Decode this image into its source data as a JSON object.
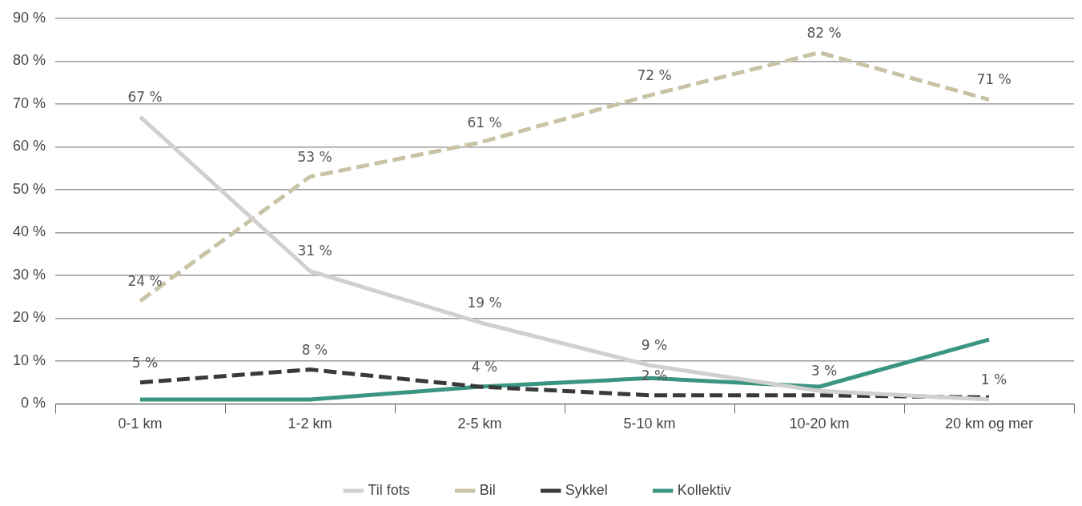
{
  "chart_data": {
    "type": "line",
    "categories": [
      "0-1 km",
      "1-2 km",
      "2-5 km",
      "5-10 km",
      "10-20 km",
      "20 km og mer"
    ],
    "ylim": [
      0,
      90
    ],
    "yticks": [
      {
        "value": 0,
        "label": "0 %"
      },
      {
        "value": 10,
        "label": "10 %"
      },
      {
        "value": 20,
        "label": "20 %"
      },
      {
        "value": 30,
        "label": "30 %"
      },
      {
        "value": 40,
        "label": "40 %"
      },
      {
        "value": 50,
        "label": "50 %"
      },
      {
        "value": 60,
        "label": "60 %"
      },
      {
        "value": 70,
        "label": "70 %"
      },
      {
        "value": 80,
        "label": "80 %"
      },
      {
        "value": 90,
        "label": "90 %"
      }
    ],
    "grid": "y",
    "legend": "bottom",
    "marker": "none",
    "series": [
      {
        "name": "Til fots",
        "color": "#d0d0d0",
        "line_style": "solid",
        "values": [
          67,
          31,
          19,
          9,
          3,
          1
        ],
        "value_labels": [
          "67 %",
          "31 %",
          "19 %",
          "9 %",
          "3 %",
          "1 %"
        ]
      },
      {
        "name": "Bil",
        "color": "#c9c3a6",
        "line_style": "dashed",
        "values": [
          24,
          53,
          61,
          72,
          82,
          71
        ],
        "value_labels": [
          "24 %",
          "53 %",
          "61 %",
          "72 %",
          "82 %",
          "71 %"
        ]
      },
      {
        "name": "Sykkel",
        "color": "#3a3a3a",
        "line_style": "dashed",
        "values": [
          5,
          8,
          4,
          2,
          2,
          1.5
        ],
        "value_labels": [
          "5 %",
          "8 %",
          "4 %",
          "2 %",
          null,
          null
        ]
      },
      {
        "name": "Kollektiv",
        "color": "#3a9680",
        "line_style": "solid",
        "values": [
          1,
          1,
          4,
          6,
          4,
          15
        ]
      }
    ]
  }
}
